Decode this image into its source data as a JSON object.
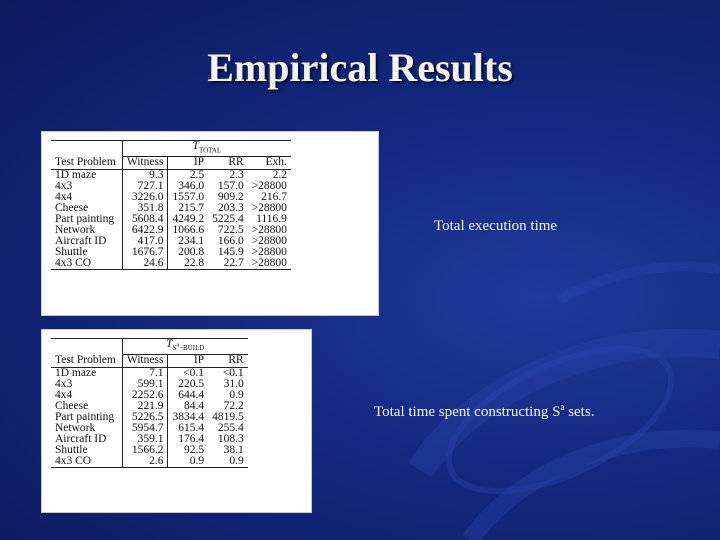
{
  "slide": {
    "title": "Empirical Results",
    "caption_total": "Total execution time",
    "caption_build_prefix": "Total time spent constructing S",
    "caption_build_sup": "a",
    "caption_build_suffix": " sets."
  },
  "table_total": {
    "group_header": "T_TOTAL",
    "columns": [
      "Test Problem",
      "Witness",
      "IP",
      "RR",
      "Exh."
    ],
    "rows": [
      [
        "1D maze",
        "9.3",
        "2.5",
        "2.3",
        "2.2"
      ],
      [
        "4x3",
        "727.1",
        "346.0",
        "157.0",
        ">28800"
      ],
      [
        "4x4",
        "3226.0",
        "1557.0",
        "909.2",
        "216.7"
      ],
      [
        "Cheese",
        "351.8",
        "215.7",
        "203.3",
        ">28800"
      ],
      [
        "Part painting",
        "5608.4",
        "4249.2",
        "5225.4",
        "1116.9"
      ],
      [
        "Network",
        "6422.9",
        "1066.6",
        "722.5",
        ">28800"
      ],
      [
        "Aircraft ID",
        "417.0",
        "234.1",
        "166.0",
        ">28800"
      ],
      [
        "Shuttle",
        "1676.7",
        "200.8",
        "145.9",
        ">28800"
      ],
      [
        "4x3 CO",
        "24.6",
        "22.8",
        "22.7",
        ">28800"
      ]
    ]
  },
  "table_build": {
    "group_header": "T_{S^a-BUILD}",
    "columns": [
      "Test Problem",
      "Witness",
      "IP",
      "RR"
    ],
    "rows": [
      [
        "1D maze",
        "7.1",
        "<0.1",
        "<0.1"
      ],
      [
        "4x3",
        "599.1",
        "220.5",
        "31.0"
      ],
      [
        "4x4",
        "2252.6",
        "644.4",
        "0.9"
      ],
      [
        "Cheese",
        "221.9",
        "84.4",
        "72.2"
      ],
      [
        "Part painting",
        "5226.5",
        "3834.4",
        "4819.5"
      ],
      [
        "Network",
        "5954.7",
        "615.4",
        "255.4"
      ],
      [
        "Aircraft ID",
        "359.1",
        "176.4",
        "108.3"
      ],
      [
        "Shuttle",
        "1566.2",
        "92.5",
        "38.1"
      ],
      [
        "4x3 CO",
        "2.6",
        "0.9",
        "0.9"
      ]
    ]
  }
}
